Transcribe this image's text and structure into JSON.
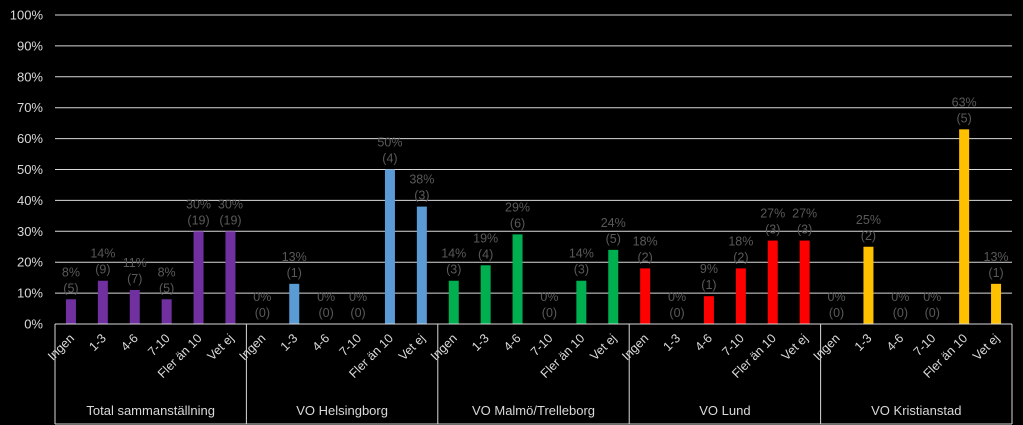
{
  "chart_data": {
    "type": "bar",
    "ylim": [
      0,
      100
    ],
    "y_tick_labels": [
      "0%",
      "10%",
      "20%",
      "30%",
      "40%",
      "50%",
      "60%",
      "70%",
      "80%",
      "90%",
      "100%"
    ],
    "grid": true,
    "legend": "none",
    "categories": [
      "Ingen",
      "1-3",
      "4-6",
      "7-10",
      "Fler än 10",
      "Vet ej"
    ],
    "groups": [
      {
        "name": "Total sammanställning",
        "color": "#7030a0",
        "values": [
          8,
          14,
          11,
          8,
          30,
          30
        ],
        "percent_labels": [
          "8%",
          "14%",
          "11%",
          "8%",
          "30%",
          "30%"
        ],
        "counts": [
          "(5)",
          "(9)",
          "(7)",
          "(5)",
          "(19)",
          "(19)"
        ]
      },
      {
        "name": "VO Helsingborg",
        "color": "#5b9bd5",
        "values": [
          0,
          13,
          0,
          0,
          50,
          38
        ],
        "percent_labels": [
          "0%",
          "13%",
          "0%",
          "0%",
          "50%",
          "38%"
        ],
        "counts": [
          "(0)",
          "(1)",
          "(0)",
          "(0)",
          "(4)",
          "(3)"
        ]
      },
      {
        "name": "VO Malmö/Trelleborg",
        "color": "#00b050",
        "values": [
          14,
          19,
          29,
          0,
          14,
          24
        ],
        "percent_labels": [
          "14%",
          "19%",
          "29%",
          "0%",
          "14%",
          "24%"
        ],
        "counts": [
          "(3)",
          "(4)",
          "(6)",
          "(0)",
          "(3)",
          "(5)"
        ]
      },
      {
        "name": "VO Lund",
        "color": "#ff0000",
        "values": [
          18,
          0,
          9,
          18,
          27,
          27
        ],
        "percent_labels": [
          "18%",
          "0%",
          "9%",
          "18%",
          "27%",
          "27%"
        ],
        "counts": [
          "(2)",
          "(0)",
          "(1)",
          "(2)",
          "(3)",
          "(3)"
        ]
      },
      {
        "name": "VO Kristianstad",
        "color": "#ffc000",
        "values": [
          0,
          25,
          0,
          0,
          63,
          13
        ],
        "percent_labels": [
          "0%",
          "25%",
          "0%",
          "0%",
          "63%",
          "13%"
        ],
        "counts": [
          "(0)",
          "(2)",
          "(0)",
          "(0)",
          "(5)",
          "(1)"
        ]
      }
    ]
  }
}
